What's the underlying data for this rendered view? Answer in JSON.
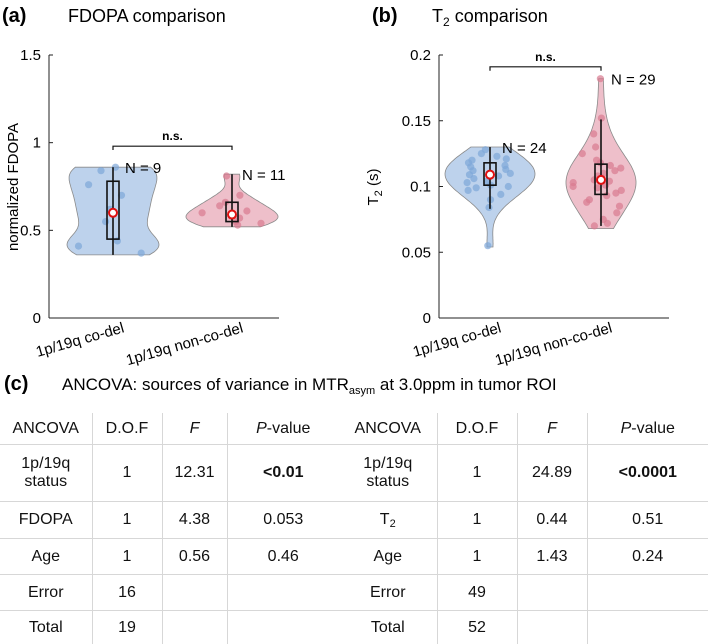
{
  "chart_data": [
    {
      "type": "violin",
      "panel": "(a)",
      "title": "FDOPA comparison",
      "xlabel": "",
      "ylabel": "normalized FDOPA",
      "ylim": [
        0,
        1.5
      ],
      "yticks": [
        "0",
        "0.5",
        "1",
        "1.5"
      ],
      "categories": [
        "1p/19q co-del",
        "1p/19q non-co-del"
      ],
      "series": [
        {
          "name": "1p/19q co-del",
          "n_label": "N = 9",
          "mean": 0.6,
          "q1": 0.45,
          "median": 0.58,
          "q3": 0.78,
          "whisker_low": 0.36,
          "whisker_high": 0.86,
          "min": 0.36,
          "max": 0.86,
          "points": [
            0.37,
            0.41,
            0.44,
            0.55,
            0.62,
            0.7,
            0.76,
            0.84,
            0.86
          ]
        },
        {
          "name": "1p/19q non-co-del",
          "n_label": "N = 11",
          "mean": 0.59,
          "q1": 0.55,
          "median": 0.6,
          "q3": 0.66,
          "whisker_low": 0.52,
          "whisker_high": 0.82,
          "min": 0.52,
          "max": 0.82,
          "points": [
            0.53,
            0.54,
            0.55,
            0.57,
            0.58,
            0.6,
            0.61,
            0.64,
            0.66,
            0.7,
            0.81
          ]
        }
      ],
      "annotation": "n.s."
    },
    {
      "type": "violin",
      "panel": "(b)",
      "title": "T2 comparison",
      "xlabel": "",
      "ylabel": "T2 (s)",
      "ylim": [
        0,
        0.2
      ],
      "yticks": [
        "0",
        "0.05",
        "0.1",
        "0.15",
        "0.2"
      ],
      "categories": [
        "1p/19q co-del",
        "1p/19q non-co-del"
      ],
      "series": [
        {
          "name": "1p/19q co-del",
          "n_label": "N = 24",
          "mean": 0.109,
          "q1": 0.101,
          "median": 0.11,
          "q3": 0.118,
          "whisker_low": 0.083,
          "whisker_high": 0.13,
          "min": 0.054,
          "max": 0.13,
          "points": [
            0.055,
            0.084,
            0.09,
            0.094,
            0.097,
            0.099,
            0.1,
            0.101,
            0.103,
            0.104,
            0.106,
            0.108,
            0.109,
            0.11,
            0.112,
            0.113,
            0.115,
            0.116,
            0.118,
            0.12,
            0.121,
            0.123,
            0.125,
            0.128
          ]
        },
        {
          "name": "1p/19q non-co-del",
          "n_label": "N = 29",
          "mean": 0.105,
          "q1": 0.094,
          "median": 0.104,
          "q3": 0.117,
          "whisker_low": 0.07,
          "whisker_high": 0.151,
          "min": 0.068,
          "max": 0.182,
          "points": [
            0.07,
            0.072,
            0.075,
            0.08,
            0.085,
            0.088,
            0.09,
            0.093,
            0.095,
            0.097,
            0.099,
            0.1,
            0.101,
            0.103,
            0.104,
            0.105,
            0.107,
            0.108,
            0.11,
            0.112,
            0.114,
            0.116,
            0.118,
            0.12,
            0.125,
            0.13,
            0.14,
            0.152,
            0.182
          ]
        }
      ],
      "annotation": "n.s."
    }
  ],
  "panel_c": {
    "label": "(c)",
    "title_pre": "ANCOVA: sources of variance in MTR",
    "title_sub": "asym",
    "title_post": " at 3.0ppm in tumor ROI",
    "headers": [
      "ANCOVA",
      "D.O.F",
      "F",
      "-value"
    ],
    "p_letter": "P",
    "left_rows": [
      {
        "label": "1p/19q",
        "label2": "status",
        "dof": "1",
        "f": "12.31",
        "p": "<0.01"
      },
      {
        "label": "FDOPA",
        "dof": "1",
        "f": "4.38",
        "p": "0.053"
      },
      {
        "label": "Age",
        "dof": "1",
        "f": "0.56",
        "p": "0.46"
      },
      {
        "label": "Error",
        "dof": "16",
        "f": "",
        "p": ""
      },
      {
        "label": "Total",
        "dof": "19",
        "f": "",
        "p": ""
      }
    ],
    "right_rows": [
      {
        "label": "1p/19q",
        "label2": "status",
        "dof": "1",
        "f": "24.89",
        "p": "<0.0001"
      },
      {
        "label": "T",
        "label_sub": "2",
        "dof": "1",
        "f": "0.44",
        "p": "0.51"
      },
      {
        "label": "Age",
        "dof": "1",
        "f": "1.43",
        "p": "0.24"
      },
      {
        "label": "Error",
        "dof": "49",
        "f": "",
        "p": ""
      },
      {
        "label": "Total",
        "dof": "52",
        "f": "",
        "p": ""
      }
    ]
  },
  "colors": {
    "blue": "#a7c3e6",
    "blue_pt": "#7ea6d8",
    "red": "#e8a9b8",
    "red_pt": "#d97a90",
    "mean": "#e01010"
  }
}
